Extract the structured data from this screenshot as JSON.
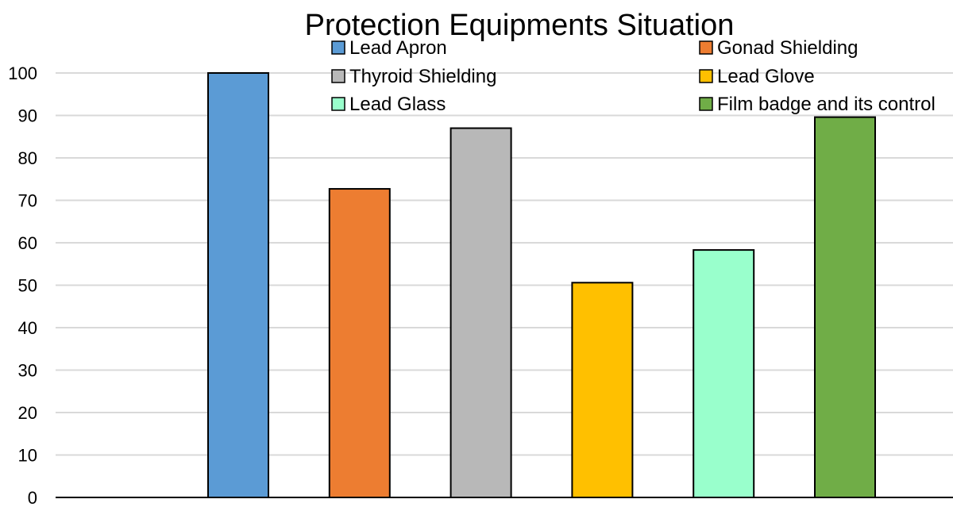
{
  "chart_data": {
    "type": "bar",
    "title": "Protection Equipments Situation",
    "xlabel": "",
    "ylabel": "",
    "ylim": [
      0,
      100
    ],
    "y_ticks": [
      0,
      10,
      20,
      30,
      40,
      50,
      60,
      70,
      80,
      90,
      100
    ],
    "grid": true,
    "legend_position": "top",
    "series": [
      {
        "name": "Lead Apron",
        "value": 100,
        "color": "#5b9bd5"
      },
      {
        "name": "Gonad Shielding",
        "value": 72.7,
        "color": "#ed7d31"
      },
      {
        "name": "Thyroid Shielding",
        "value": 87,
        "color": "#b8b8b8"
      },
      {
        "name": "Lead Glove",
        "value": 50.6,
        "color": "#ffc000"
      },
      {
        "name": "Lead Glass",
        "value": 58.3,
        "color": "#99ffcc"
      },
      {
        "name": "Film badge and its control",
        "value": 89.6,
        "color": "#70ad47"
      }
    ]
  }
}
